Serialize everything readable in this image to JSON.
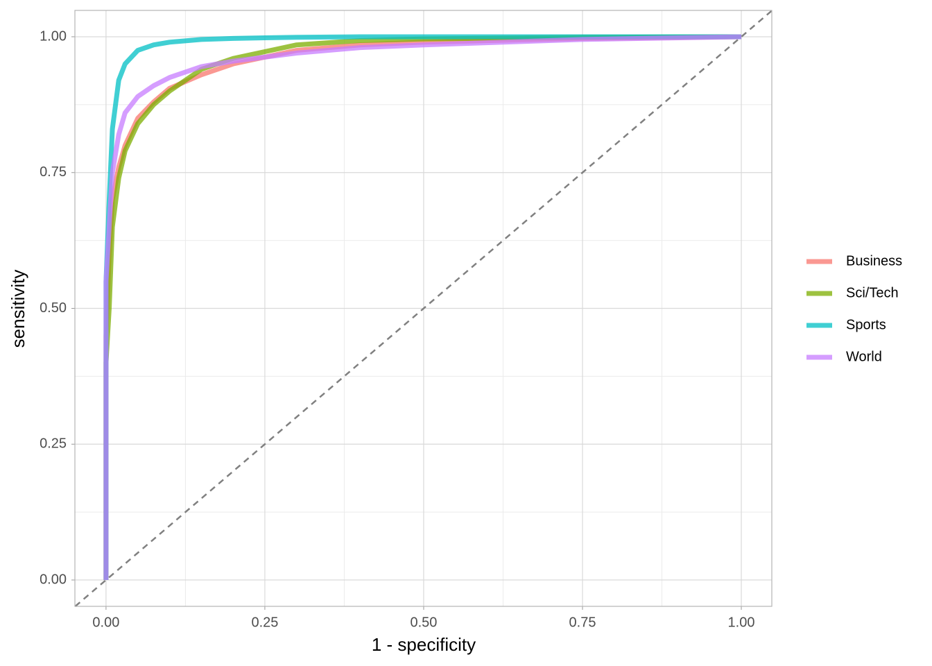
{
  "chart_data": {
    "type": "line",
    "x_label": "1 - specificity",
    "y_label": "sensitivity",
    "x": [
      0,
      0,
      0.005,
      0.01,
      0.02,
      0.03,
      0.05,
      0.075,
      0.1,
      0.15,
      0.2,
      0.3,
      0.4,
      0.5,
      0.75,
      1.0
    ],
    "series": [
      {
        "name": "Business",
        "color": "#F8766D",
        "values": [
          0,
          0.45,
          0.6,
          0.7,
          0.76,
          0.8,
          0.85,
          0.88,
          0.905,
          0.93,
          0.95,
          0.975,
          0.985,
          0.99,
          0.997,
          1
        ]
      },
      {
        "name": "Sci/Tech",
        "color": "#7CAE00",
        "values": [
          0,
          0.4,
          0.5,
          0.65,
          0.74,
          0.79,
          0.84,
          0.875,
          0.9,
          0.94,
          0.96,
          0.985,
          0.993,
          0.996,
          0.999,
          1
        ]
      },
      {
        "name": "Sports",
        "color": "#00BFC4",
        "values": [
          0,
          0.55,
          0.7,
          0.83,
          0.92,
          0.95,
          0.975,
          0.985,
          0.99,
          0.995,
          0.997,
          0.999,
          1,
          1,
          1,
          1
        ]
      },
      {
        "name": "World",
        "color": "#C77CFF",
        "values": [
          0,
          0.55,
          0.65,
          0.75,
          0.82,
          0.86,
          0.89,
          0.91,
          0.925,
          0.945,
          0.955,
          0.97,
          0.98,
          0.985,
          0.995,
          1
        ]
      }
    ],
    "xlim": [
      -0.049,
      1.048
    ],
    "ylim": [
      -0.0485,
      1.0485
    ],
    "xticks": [
      {
        "value": 0,
        "label": "0.00"
      },
      {
        "value": 0.25,
        "label": "0.25"
      },
      {
        "value": 0.5,
        "label": "0.50"
      },
      {
        "value": 0.75,
        "label": "0.75"
      },
      {
        "value": 1,
        "label": "1.00"
      }
    ],
    "yticks": [
      {
        "value": 0,
        "label": "0.00"
      },
      {
        "value": 0.25,
        "label": "0.25"
      },
      {
        "value": 0.5,
        "label": "0.50"
      },
      {
        "value": 0.75,
        "label": "0.75"
      },
      {
        "value": 1,
        "label": "1.00"
      }
    ],
    "minor_xticks": [
      0.125,
      0.375,
      0.625,
      0.875
    ],
    "minor_yticks": [
      0.125,
      0.375,
      0.625,
      0.875
    ],
    "grid": true,
    "diagonal": true,
    "legend": "right"
  }
}
